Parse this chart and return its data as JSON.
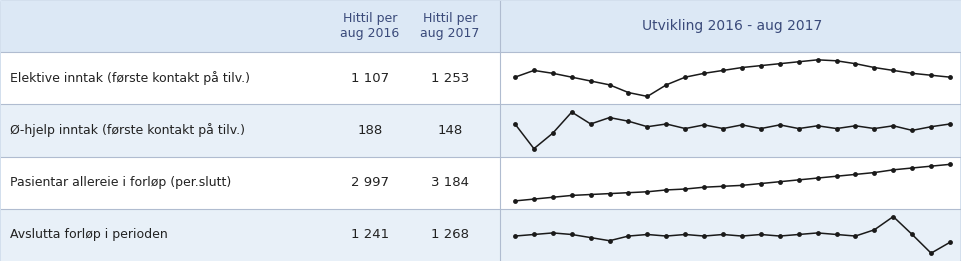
{
  "background_color": "#dce8f5",
  "row_colors": [
    "#ffffff",
    "#e8f0f8"
  ],
  "header_bg": "#dce8f5",
  "rows": [
    {
      "label": "Elektive inntak (første kontakt på tilv.)",
      "val2016": "1 107",
      "val2017": "1 253",
      "sparkline": [
        58,
        65,
        62,
        58,
        54,
        50,
        42,
        38,
        50,
        58,
        62,
        65,
        68,
        70,
        72,
        74,
        76,
        75,
        72,
        68,
        65,
        62,
        60,
        58
      ]
    },
    {
      "label": "Ø-hjelp inntak (første kontakt på tilv.)",
      "val2016": "188",
      "val2017": "148",
      "sparkline": [
        55,
        28,
        45,
        68,
        55,
        62,
        58,
        52,
        55,
        50,
        54,
        50,
        54,
        50,
        54,
        50,
        53,
        50,
        53,
        50,
        53,
        48,
        52,
        55
      ]
    },
    {
      "label": "Pasientar allereie i forløp (per.slutt)",
      "val2016": "2 997",
      "val2017": "3 184",
      "sparkline": [
        28,
        30,
        32,
        34,
        35,
        36,
        37,
        38,
        40,
        41,
        43,
        44,
        45,
        47,
        49,
        51,
        53,
        55,
        57,
        59,
        62,
        64,
        66,
        68
      ]
    },
    {
      "label": "Avslutta forløp i perioden",
      "val2016": "1 241",
      "val2017": "1 268",
      "sparkline": [
        50,
        52,
        54,
        52,
        48,
        44,
        50,
        52,
        50,
        52,
        50,
        52,
        50,
        52,
        50,
        52,
        54,
        52,
        50,
        58,
        75,
        52,
        28,
        42
      ]
    }
  ],
  "col_header1": "Hittil per\naug 2016",
  "col_header2": "Hittil per\naug 2017",
  "col_header3": "Utvikling 2016 - aug 2017",
  "text_color": "#222222",
  "header_text_color": "#3a4a7a",
  "border_color": "#b0bcd0",
  "sparkline_color": "#1a1a1a",
  "fig_width": 9.61,
  "fig_height": 2.61,
  "dpi": 100
}
